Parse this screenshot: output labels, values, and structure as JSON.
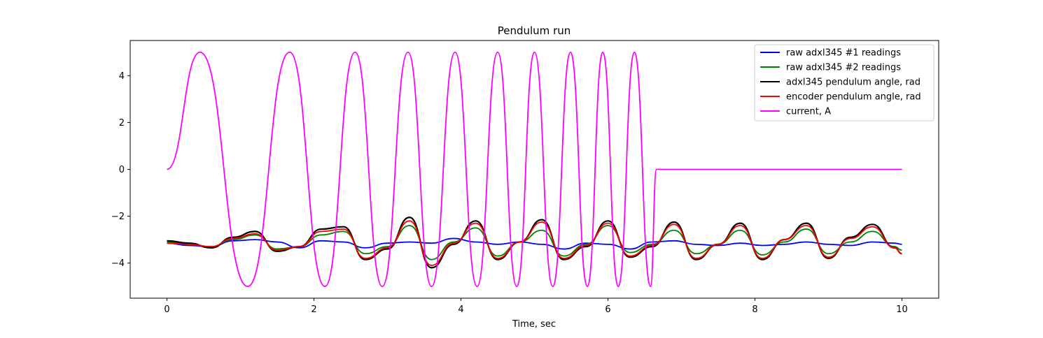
{
  "chart_data": {
    "type": "line",
    "title": "Pendulum run",
    "xlabel": "Time, sec",
    "ylabel": "",
    "xlim": [
      -0.5,
      10.5
    ],
    "ylim": [
      -5.5,
      5.5
    ],
    "xticks": [
      0,
      2,
      4,
      6,
      8,
      10
    ],
    "yticks": [
      -4,
      -2,
      0,
      2,
      4
    ],
    "xtick_labels": [
      "0",
      "2",
      "4",
      "6",
      "8",
      "10"
    ],
    "ytick_labels": [
      "−4",
      "−2",
      "0",
      "2",
      "4"
    ],
    "legend_position": "top-right",
    "series": [
      {
        "name": "raw adxl345 #1 readings",
        "color": "#0000ff",
        "x": [
          0,
          0.3,
          0.6,
          0.9,
          1.2,
          1.5,
          1.8,
          2.1,
          2.4,
          2.7,
          3.0,
          3.3,
          3.6,
          3.9,
          4.2,
          4.5,
          4.8,
          5.1,
          5.4,
          5.7,
          6.0,
          6.3,
          6.6,
          6.9,
          7.2,
          7.5,
          7.8,
          8.1,
          8.4,
          8.7,
          9.0,
          9.3,
          9.6,
          9.9,
          10
        ],
        "values": [
          -3.15,
          -3.25,
          -3.3,
          -3.05,
          -3.0,
          -3.1,
          -3.35,
          -3.05,
          -3.1,
          -3.35,
          -3.15,
          -3.1,
          -3.15,
          -2.95,
          -3.1,
          -3.2,
          -3.1,
          -3.2,
          -3.4,
          -3.15,
          -3.2,
          -3.4,
          -3.1,
          -3.05,
          -3.2,
          -3.25,
          -3.15,
          -3.25,
          -3.2,
          -3.1,
          -3.2,
          -3.25,
          -3.1,
          -3.15,
          -3.2
        ]
      },
      {
        "name": "raw adxl345 #2 readings",
        "color": "#008000",
        "x": [
          0,
          0.3,
          0.6,
          0.9,
          1.2,
          1.5,
          1.8,
          2.1,
          2.4,
          2.7,
          3.0,
          3.3,
          3.6,
          3.9,
          4.2,
          4.5,
          4.8,
          5.1,
          5.4,
          5.7,
          6.0,
          6.3,
          6.6,
          6.9,
          7.2,
          7.5,
          7.8,
          8.1,
          8.4,
          8.7,
          9.0,
          9.3,
          9.6,
          9.9,
          10
        ],
        "values": [
          -3.1,
          -3.2,
          -3.3,
          -3.0,
          -2.8,
          -3.4,
          -3.3,
          -2.8,
          -2.65,
          -3.6,
          -3.3,
          -2.4,
          -3.85,
          -3.1,
          -2.5,
          -3.7,
          -3.1,
          -2.6,
          -3.7,
          -3.2,
          -2.4,
          -3.55,
          -3.2,
          -2.6,
          -3.6,
          -3.2,
          -2.6,
          -3.65,
          -3.1,
          -2.55,
          -3.6,
          -3.1,
          -2.65,
          -3.3,
          -3.45
        ]
      },
      {
        "name": "adxl345 pendulum angle, rad",
        "color": "#000000",
        "x": [
          0,
          0.3,
          0.6,
          0.9,
          1.2,
          1.5,
          1.8,
          2.1,
          2.4,
          2.7,
          3.0,
          3.3,
          3.6,
          3.9,
          4.2,
          4.5,
          4.8,
          5.1,
          5.4,
          5.7,
          6.0,
          6.3,
          6.6,
          6.9,
          7.2,
          7.5,
          7.8,
          8.1,
          8.4,
          8.7,
          9.0,
          9.3,
          9.6,
          9.9,
          10
        ],
        "values": [
          -3.05,
          -3.15,
          -3.35,
          -2.9,
          -2.65,
          -3.5,
          -3.3,
          -2.55,
          -2.45,
          -3.85,
          -3.4,
          -2.05,
          -4.2,
          -3.2,
          -2.2,
          -3.85,
          -3.1,
          -2.15,
          -3.85,
          -3.3,
          -2.2,
          -3.75,
          -3.3,
          -2.25,
          -3.85,
          -3.2,
          -2.3,
          -3.85,
          -3.0,
          -2.3,
          -3.8,
          -2.9,
          -2.35,
          -3.35,
          -3.6
        ]
      },
      {
        "name": "encoder pendulum angle, rad",
        "color": "#ff0000",
        "x": [
          0,
          0.3,
          0.6,
          0.9,
          1.2,
          1.5,
          1.8,
          2.1,
          2.4,
          2.7,
          3.0,
          3.3,
          3.6,
          3.9,
          4.2,
          4.5,
          4.8,
          5.1,
          5.4,
          5.7,
          6.0,
          6.3,
          6.6,
          6.9,
          7.2,
          7.5,
          7.8,
          8.1,
          8.4,
          8.7,
          9.0,
          9.3,
          9.6,
          9.9,
          10
        ],
        "values": [
          -3.15,
          -3.2,
          -3.3,
          -2.95,
          -2.75,
          -3.45,
          -3.3,
          -2.65,
          -2.55,
          -3.8,
          -3.35,
          -2.2,
          -4.1,
          -3.15,
          -2.3,
          -3.8,
          -3.1,
          -2.25,
          -3.8,
          -3.25,
          -2.3,
          -3.7,
          -3.25,
          -2.35,
          -3.8,
          -3.2,
          -2.4,
          -3.8,
          -3.0,
          -2.4,
          -3.75,
          -2.95,
          -2.45,
          -3.35,
          -3.6
        ]
      },
      {
        "name": "current, A",
        "color": "#ff00ff",
        "x": [
          0,
          0.45,
          1.1,
          1.67,
          2.15,
          2.56,
          2.93,
          3.28,
          3.6,
          3.92,
          4.22,
          4.5,
          4.76,
          5.0,
          5.25,
          5.49,
          5.72,
          5.93,
          6.14,
          6.36,
          6.58,
          6.66,
          6.68,
          7,
          8,
          9,
          10
        ],
        "values": [
          0,
          5,
          -5,
          5,
          -5,
          5,
          -5,
          5,
          -5,
          5,
          -5,
          5,
          -5,
          5,
          -5,
          5,
          -5,
          5,
          -5,
          5,
          -5,
          0,
          0,
          0,
          0,
          0,
          0
        ]
      }
    ]
  }
}
